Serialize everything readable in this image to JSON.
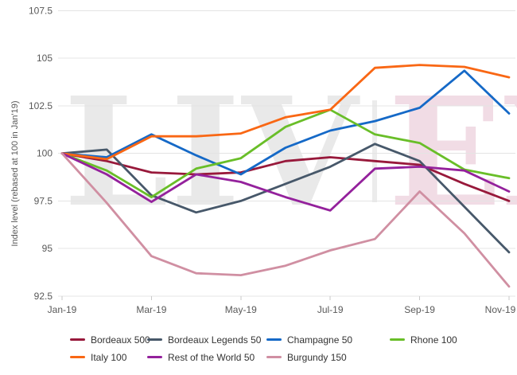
{
  "chart_data": {
    "type": "line",
    "title": "",
    "ylabel": "Index level (rebased at 100 in Jan'19)",
    "xlabel": "",
    "months": [
      "Jan-19",
      "Feb-19",
      "Mar-19",
      "Apr-19",
      "May-19",
      "Jun-19",
      "Jul-19",
      "Aug-19",
      "Sep-19",
      "Oct-19",
      "Nov-19"
    ],
    "x_tick_labels": [
      "Jan-19",
      "Mar-19",
      "May-19",
      "Jul-19",
      "Sep-19",
      "Nov-19"
    ],
    "y_ticks": [
      107.5,
      105,
      102.5,
      100,
      97.5,
      95,
      92.5
    ],
    "ylim": [
      92.5,
      107.5
    ],
    "grid": true,
    "legend_position": "bottom",
    "watermark": {
      "left": "LIV",
      "right": "EX",
      "left_color": "#e9e9e9",
      "right_color": "#f1dce5"
    },
    "series": [
      {
        "name": "Bordeaux 500",
        "color": "#98193B",
        "values": [
          100,
          99.6,
          99.0,
          98.9,
          99.0,
          99.6,
          99.8,
          99.6,
          99.4,
          98.4,
          97.5
        ]
      },
      {
        "name": "Bordeaux Legends 50",
        "color": "#47586A",
        "values": [
          100,
          100.2,
          97.8,
          96.9,
          97.5,
          98.4,
          99.3,
          100.5,
          99.6,
          97.2,
          94.8
        ]
      },
      {
        "name": "Champagne 50",
        "color": "#1569C7",
        "values": [
          100,
          99.8,
          101.0,
          99.9,
          98.9,
          100.3,
          101.2,
          101.7,
          102.4,
          104.35,
          102.1
        ]
      },
      {
        "name": "Rhone 100",
        "color": "#69BE28",
        "values": [
          100,
          99.1,
          97.7,
          99.2,
          99.75,
          101.4,
          102.3,
          101.0,
          100.55,
          99.15,
          98.7
        ]
      },
      {
        "name": "Italy 100",
        "color": "#F96714",
        "values": [
          100,
          99.7,
          100.9,
          100.9,
          101.05,
          101.9,
          102.3,
          104.5,
          104.65,
          104.55,
          104.0
        ]
      },
      {
        "name": "Rest of the World 50",
        "color": "#94219C",
        "values": [
          100,
          98.9,
          97.45,
          98.9,
          98.5,
          97.7,
          97.0,
          99.2,
          99.3,
          99.1,
          98.0
        ]
      },
      {
        "name": "Burgundy 150",
        "color": "#D08FA2",
        "values": [
          100,
          97.4,
          94.6,
          93.7,
          93.6,
          94.1,
          94.9,
          95.5,
          98.0,
          95.8,
          93.0
        ]
      }
    ]
  }
}
